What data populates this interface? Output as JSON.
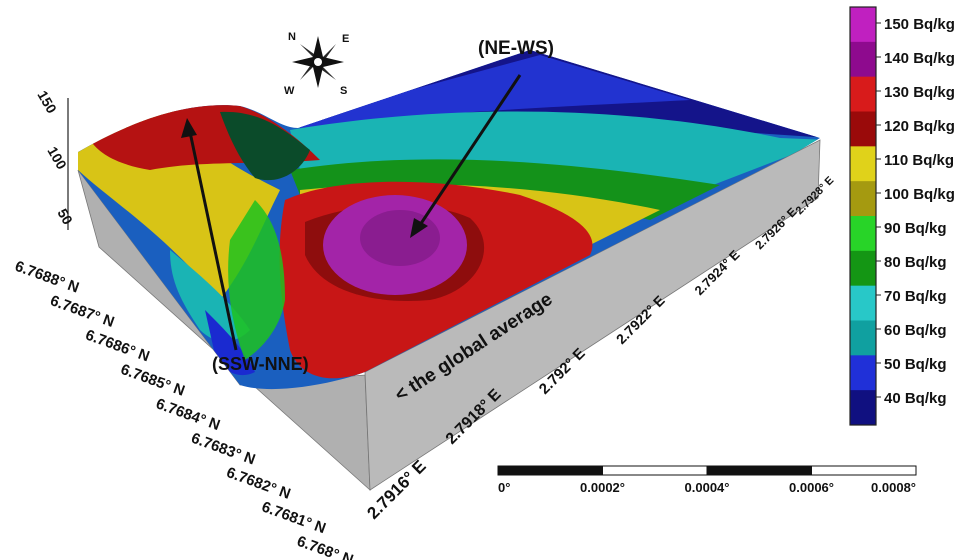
{
  "compass": {
    "north": "N",
    "east": "E",
    "south": "S",
    "west": "W"
  },
  "annotations": {
    "ne_ws": "(NE-WS)",
    "ssw_nne": "(SSW-NNE)",
    "global_average": "< the global average"
  },
  "z_axis_ticks": [
    "150",
    "100",
    "50"
  ],
  "latitude_ticks": [
    "6.7688° N",
    "6.7687° N",
    "6.7686° N",
    "6.7685° N",
    "6.7684° N",
    "6.7683° N",
    "6.7682° N",
    "6.7681° N",
    "6.768° N"
  ],
  "longitude_ticks": [
    "2.7916° E",
    "2.7918° E",
    "2.792° E",
    "2.7922° E",
    "2.7924° E",
    "2.7926° E",
    "2.7928° E"
  ],
  "colorbar": {
    "labels": [
      "150 Bq/kg",
      "140 Bq/kg",
      "130 Bq/kg",
      "120 Bq/kg",
      "110 Bq/kg",
      "100 Bq/kg",
      "90 Bq/kg",
      "80 Bq/kg",
      "70 Bq/kg",
      "60 Bq/kg",
      "50 Bq/kg",
      "40 Bq/kg"
    ],
    "band_colors": [
      "#c020c0",
      "#8e0a8e",
      "#d81b1b",
      "#9a0a0a",
      "#e0d21a",
      "#a59a10",
      "#28d428",
      "#149614",
      "#28c8c8",
      "#10a0a0",
      "#2030d8",
      "#101080"
    ]
  },
  "scale_bar": {
    "labels": [
      "0°",
      "0.0002°",
      "0.0004°",
      "0.0006°",
      "0.0008°"
    ]
  },
  "colors": {
    "side_face": "#b2b2b2",
    "purple": "#a324a8",
    "red": "#c81616",
    "dark_red": "#8e0d0d",
    "yellow": "#d8c416",
    "green": "#22c022",
    "dark_green": "#118811",
    "cyan": "#1ab4b4",
    "blue": "#1828c8",
    "navy": "#101070"
  }
}
